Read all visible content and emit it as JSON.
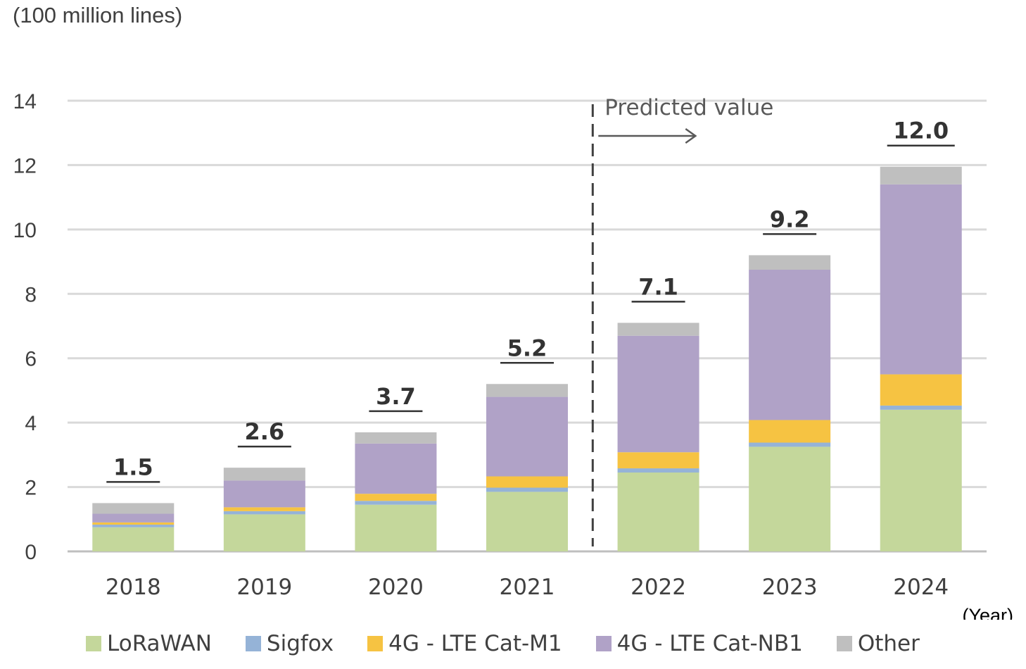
{
  "chart_data": {
    "type": "bar",
    "stacked": true,
    "unit_label": "(100 million lines)",
    "x_unit_label": "(Year)",
    "categories": [
      "2018",
      "2019",
      "2020",
      "2021",
      "2022",
      "2023",
      "2024"
    ],
    "ylim": [
      0,
      14
    ],
    "yticks": [
      "0",
      "2",
      "4",
      "6",
      "8",
      "10",
      "12",
      "14"
    ],
    "grid": true,
    "legend_position": "bottom",
    "series": [
      {
        "name": "LoRaWAN",
        "color": "#c4d79b",
        "values": [
          0.75,
          1.15,
          1.45,
          1.85,
          2.45,
          3.25,
          4.4
        ]
      },
      {
        "name": "Sigfox",
        "color": "#95b3d7",
        "values": [
          0.08,
          0.1,
          0.12,
          0.13,
          0.13,
          0.13,
          0.13
        ]
      },
      {
        "name": "4G - LTE Cat-M1",
        "color": "#f6c342",
        "values": [
          0.07,
          0.12,
          0.22,
          0.35,
          0.5,
          0.7,
          0.97
        ]
      },
      {
        "name": "4G - LTE Cat-NB1",
        "color": "#b0a2c7",
        "values": [
          0.27,
          0.83,
          1.56,
          2.47,
          3.62,
          4.67,
          5.9
        ]
      },
      {
        "name": "Other",
        "color": "#bfbfbf",
        "values": [
          0.33,
          0.4,
          0.35,
          0.4,
          0.4,
          0.45,
          0.55
        ]
      }
    ],
    "totals": [
      "1.5",
      "2.6",
      "3.7",
      "5.2",
      "7.1",
      "9.2",
      "12.0"
    ],
    "annotation": {
      "text": "Predicted value",
      "divider_after": "2021"
    }
  }
}
